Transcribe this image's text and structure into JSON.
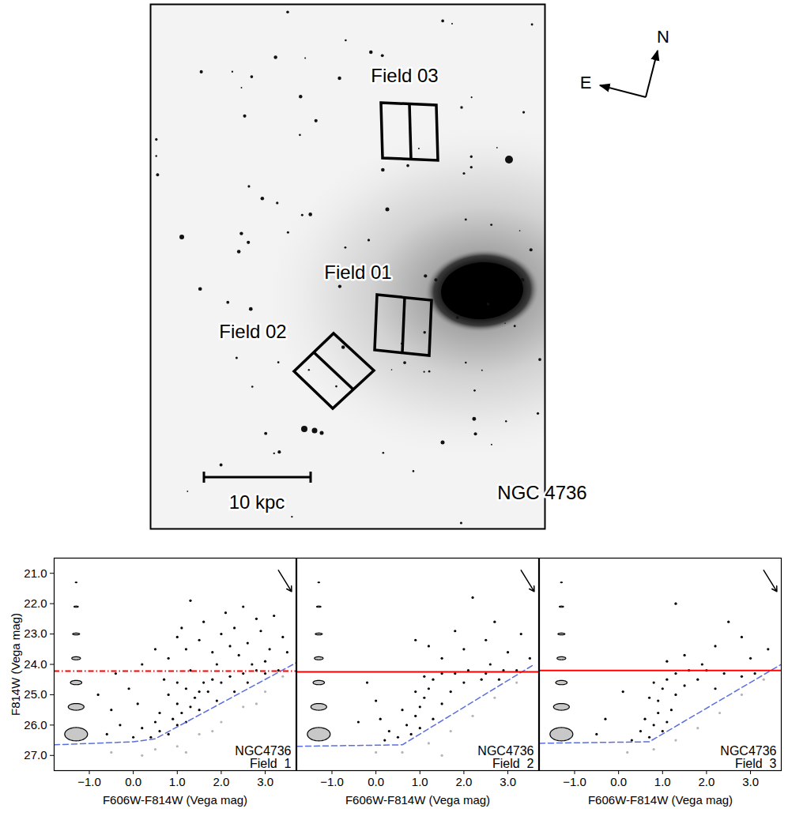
{
  "image": {
    "title": "NGC 4736",
    "fields": [
      "Field 03",
      "Field 01",
      "Field 02"
    ],
    "compass": [
      "N",
      "E"
    ],
    "scale_bar": "10 kpc"
  },
  "chart_data": [
    {
      "type": "scatter",
      "annotations": [
        "NGC4736",
        "Field  1"
      ],
      "x_label": "F606W-F814W (Vega mag)",
      "y_label": "F814W (Vega mag)",
      "xlim": [
        -1.8,
        3.7
      ],
      "ylim": [
        27.5,
        20.5
      ],
      "xticks": [
        -1,
        0,
        1,
        2,
        3
      ],
      "yticks": [
        21,
        22,
        23,
        24,
        25,
        26,
        27
      ],
      "series": [
        {
          "color": "#b4b4b4",
          "marker": "dot",
          "x": [
            0.5,
            1.0,
            1.5,
            2.0,
            2.5,
            3.0,
            3.4,
            1.2,
            0.2,
            2.8,
            1.8,
            -0.5
          ],
          "y": [
            26.8,
            26.7,
            26.3,
            25.9,
            25.4,
            24.9,
            24.4,
            26.9,
            27.0,
            25.3,
            26.2,
            26.9
          ]
        },
        {
          "color": "#000000",
          "marker": "dot",
          "x": [
            0.4,
            0.6,
            0.8,
            1.0,
            0.9,
            1.1,
            1.2,
            1.3,
            1.0,
            1.4,
            1.5,
            1.6,
            1.8,
            1.7,
            2.0,
            2.2,
            2.5,
            2.8,
            3.0,
            3.3,
            1.2,
            0.8,
            0.6,
            0.5,
            1.5,
            1.9,
            2.3,
            2.6,
            0.2,
            0.0,
            0.7,
            1.3,
            1.0,
            0.8,
            1.2,
            1.5,
            1.8,
            2.0,
            2.3,
            2.6,
            2.9,
            3.1,
            3.4,
            1.6,
            2.1,
            2.5,
            1.3,
            2.8,
            3.2,
            1.0,
            1.9,
            2.4,
            2.7,
            3.5,
            0.5,
            1.1,
            3.0,
            2.2,
            -0.5,
            -0.3,
            -0.8,
            -0.1,
            0.1,
            -0.4,
            0.2,
            -0.6
          ],
          "y": [
            26.4,
            26.2,
            26.3,
            26.0,
            25.8,
            25.6,
            25.9,
            25.4,
            25.3,
            25.1,
            24.9,
            24.6,
            24.5,
            24.9,
            24.6,
            24.4,
            24.3,
            24.2,
            24.3,
            24.2,
            24.8,
            25.0,
            25.6,
            25.9,
            25.5,
            25.2,
            24.9,
            24.6,
            26.1,
            26.4,
            24.5,
            24.2,
            24.6,
            23.8,
            23.5,
            23.2,
            23.6,
            23.0,
            22.8,
            23.3,
            22.9,
            23.5,
            23.1,
            22.6,
            22.3,
            22.1,
            21.9,
            22.5,
            22.4,
            23.1,
            24.0,
            23.7,
            24.0,
            23.6,
            23.5,
            22.8,
            23.9,
            23.4,
            25.5,
            26.0,
            25.0,
            24.8,
            25.3,
            24.3,
            24.0,
            26.3
          ]
        }
      ],
      "trgb": {
        "value": 24.22,
        "color": "#ff0000",
        "line_style": "dashdot"
      },
      "completeness": {
        "color": "#5b6ee1",
        "line_style": "dashed",
        "x": [
          -1.8,
          0.0,
          0.5,
          3.7
        ],
        "y": [
          26.65,
          26.55,
          26.45,
          23.95
        ]
      },
      "errors": {
        "x": -1.3,
        "y": [
          21.3,
          22.1,
          23.0,
          23.8,
          24.6,
          25.4,
          26.3
        ],
        "x_err": [
          0.02,
          0.05,
          0.08,
          0.1,
          0.13,
          0.18,
          0.26
        ],
        "y_err": [
          0.01,
          0.02,
          0.03,
          0.05,
          0.07,
          0.11,
          0.22
        ]
      },
      "arrow": {
        "x": [
          3.3,
          3.6
        ],
        "y": [
          20.9,
          21.6
        ]
      }
    },
    {
      "type": "scatter",
      "annotations": [
        "NGC4736",
        "Field  2"
      ],
      "tick_labels": "x",
      "x_label": "F606W-F814W (Vega mag)",
      "xlim": [
        -1.8,
        3.7
      ],
      "ylim": [
        27.5,
        20.5
      ],
      "xticks": [
        -1,
        0,
        1,
        2,
        3
      ],
      "yticks": [
        21,
        22,
        23,
        24,
        25,
        26,
        27
      ],
      "series": [
        {
          "color": "#b4b4b4",
          "marker": "dot",
          "x": [
            0.6,
            1.2,
            1.7,
            2.2,
            2.7,
            3.2,
            0.0,
            1.5
          ],
          "y": [
            26.9,
            26.6,
            26.2,
            25.7,
            25.1,
            24.6,
            26.9,
            27.0
          ]
        },
        {
          "color": "#000000",
          "marker": "dot",
          "x": [
            0.5,
            0.7,
            0.9,
            1.0,
            1.1,
            1.2,
            1.3,
            1.5,
            1.8,
            2.1,
            2.5,
            2.9,
            0.8,
            1.0,
            1.3,
            1.5,
            1.7,
            2.0,
            2.4,
            0.6,
            0.9,
            1.1,
            0.3,
            0.1,
            2.8,
            3.2,
            1.5,
            2.0,
            2.5,
            3.0,
            1.8,
            2.7,
            1.2,
            3.3,
            2.2,
            0.9,
            2.6,
            3.5,
            -0.4,
            0.0,
            -0.2,
            0.2
          ],
          "y": [
            26.4,
            26.0,
            25.7,
            25.4,
            25.1,
            24.8,
            24.5,
            24.3,
            24.3,
            24.2,
            24.3,
            24.2,
            26.3,
            26.1,
            25.8,
            25.3,
            24.9,
            24.6,
            24.5,
            25.5,
            24.9,
            24.4,
            26.2,
            25.8,
            24.5,
            24.2,
            23.8,
            23.5,
            23.2,
            23.6,
            22.9,
            22.6,
            23.4,
            23.0,
            21.8,
            23.2,
            24.0,
            23.8,
            25.9,
            25.2,
            24.6,
            26.5
          ]
        }
      ],
      "trgb": {
        "value": 24.25,
        "color": "#ff0000",
        "line_style": "solid"
      },
      "completeness": {
        "color": "#5b6ee1",
        "line_style": "dashed",
        "x": [
          -1.8,
          0.6,
          3.6
        ],
        "y": [
          26.7,
          26.65,
          24.0
        ]
      },
      "errors": {
        "x": -1.3,
        "y": [
          21.3,
          22.1,
          23.0,
          23.8,
          24.6,
          25.4,
          26.3
        ],
        "x_err": [
          0.02,
          0.05,
          0.08,
          0.1,
          0.13,
          0.18,
          0.26
        ],
        "y_err": [
          0.01,
          0.02,
          0.03,
          0.05,
          0.07,
          0.11,
          0.22
        ]
      },
      "arrow": {
        "x": [
          3.3,
          3.6
        ],
        "y": [
          20.9,
          21.6
        ]
      }
    },
    {
      "type": "scatter",
      "annotations": [
        "NGC4736",
        "Field  3"
      ],
      "tick_labels": "x",
      "x_label": "F606W-F814W (Vega mag)",
      "xlim": [
        -1.8,
        3.7
      ],
      "ylim": [
        27.5,
        20.5
      ],
      "xticks": [
        -1,
        0,
        1,
        2,
        3
      ],
      "yticks": [
        21,
        22,
        23,
        24,
        25,
        26,
        27
      ],
      "series": [
        {
          "color": "#b4b4b4",
          "marker": "dot",
          "x": [
            0.8,
            1.3,
            1.8,
            2.3,
            2.8,
            3.3,
            0.2
          ],
          "y": [
            26.8,
            26.5,
            26.1,
            25.6,
            25.0,
            24.5,
            26.9
          ]
        },
        {
          "color": "#000000",
          "marker": "dot",
          "x": [
            0.7,
            0.8,
            0.9,
            0.9,
            1.0,
            1.1,
            1.3,
            1.6,
            2.0,
            2.4,
            1.0,
            1.1,
            1.2,
            1.3,
            1.5,
            1.8,
            0.6,
            0.7,
            0.8,
            0.5,
            2.2,
            2.8,
            3.1,
            1.5,
            2.2,
            2.8,
            1.3,
            2.5,
            3.0,
            1.9,
            3.4,
            1.1,
            -0.3,
            0.1,
            -0.5,
            0.3
          ],
          "y": [
            26.4,
            26.0,
            25.6,
            25.2,
            24.8,
            24.5,
            24.3,
            24.2,
            24.2,
            24.3,
            26.2,
            25.9,
            25.5,
            25.0,
            24.7,
            24.5,
            25.8,
            25.1,
            24.6,
            26.2,
            24.8,
            24.4,
            24.3,
            23.7,
            23.4,
            23.1,
            22.0,
            22.6,
            23.8,
            24.0,
            23.5,
            23.9,
            25.8,
            24.9,
            26.3,
            26.5
          ]
        }
      ],
      "trgb": {
        "value": 24.2,
        "color": "#ff0000",
        "line_style": "solid"
      },
      "completeness": {
        "color": "#5b6ee1",
        "line_style": "dashed",
        "x": [
          -1.8,
          0.7,
          3.7
        ],
        "y": [
          26.6,
          26.55,
          24.0
        ]
      },
      "errors": {
        "x": -1.3,
        "y": [
          21.3,
          22.1,
          23.0,
          23.8,
          24.6,
          25.4,
          26.3
        ],
        "x_err": [
          0.02,
          0.05,
          0.08,
          0.1,
          0.13,
          0.18,
          0.26
        ],
        "y_err": [
          0.01,
          0.02,
          0.03,
          0.05,
          0.07,
          0.11,
          0.22
        ]
      },
      "arrow": {
        "x": [
          3.3,
          3.6
        ],
        "y": [
          20.9,
          21.6
        ]
      }
    }
  ]
}
